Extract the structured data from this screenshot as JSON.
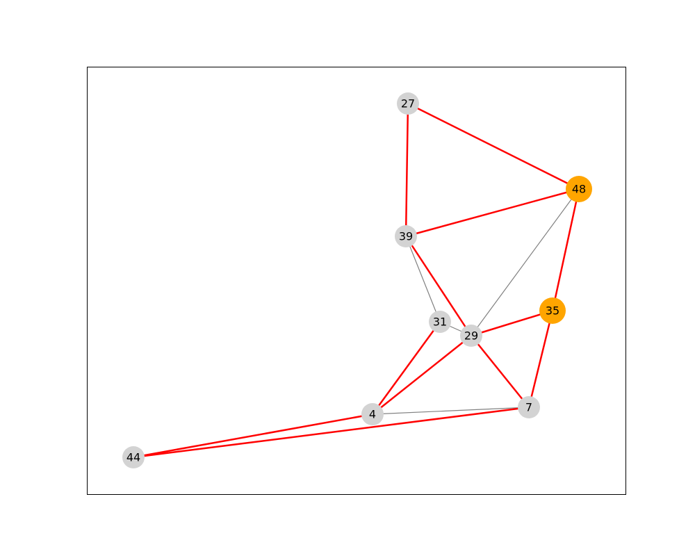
{
  "graph": {
    "colors": {
      "highlight_edge": "#ff0000",
      "normal_edge": "#808080",
      "highlight_node": "#ffa500",
      "normal_node": "#d3d3d3"
    },
    "nodes": [
      {
        "id": "27",
        "highlighted": false
      },
      {
        "id": "48",
        "highlighted": true
      },
      {
        "id": "39",
        "highlighted": false
      },
      {
        "id": "35",
        "highlighted": true
      },
      {
        "id": "31",
        "highlighted": false
      },
      {
        "id": "29",
        "highlighted": false
      },
      {
        "id": "4",
        "highlighted": false
      },
      {
        "id": "7",
        "highlighted": false
      },
      {
        "id": "44",
        "highlighted": false
      }
    ],
    "edges": [
      {
        "source": "27",
        "target": "48",
        "highlighted": true
      },
      {
        "source": "27",
        "target": "39",
        "highlighted": true
      },
      {
        "source": "39",
        "target": "48",
        "highlighted": true
      },
      {
        "source": "48",
        "target": "35",
        "highlighted": true
      },
      {
        "source": "48",
        "target": "29",
        "highlighted": false
      },
      {
        "source": "39",
        "target": "31",
        "highlighted": false
      },
      {
        "source": "39",
        "target": "29",
        "highlighted": true
      },
      {
        "source": "31",
        "target": "29",
        "highlighted": false
      },
      {
        "source": "29",
        "target": "35",
        "highlighted": true
      },
      {
        "source": "35",
        "target": "7",
        "highlighted": true
      },
      {
        "source": "29",
        "target": "7",
        "highlighted": true
      },
      {
        "source": "31",
        "target": "4",
        "highlighted": true
      },
      {
        "source": "29",
        "target": "4",
        "highlighted": true
      },
      {
        "source": "4",
        "target": "7",
        "highlighted": false
      },
      {
        "source": "4",
        "target": "44",
        "highlighted": true
      },
      {
        "source": "7",
        "target": "44",
        "highlighted": true
      }
    ]
  }
}
